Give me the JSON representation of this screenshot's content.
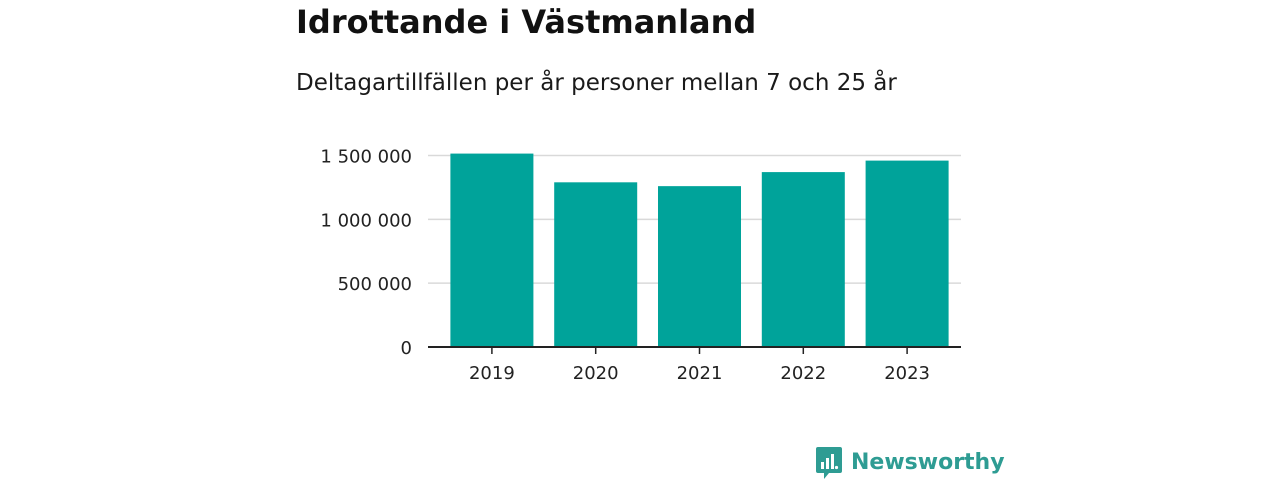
{
  "colors": {
    "bar": "#00a39a",
    "grid": "#d9d9d9",
    "axis": "#222222",
    "brand": "#2e9c93"
  },
  "brand": {
    "name": "Newsworthy",
    "icon": "newsworthy-logo-icon"
  },
  "chart_data": {
    "type": "bar",
    "title": "Idrottande i Västmanland",
    "subtitle": "Deltagartillfällen per år personer mellan 7 och 25 år",
    "xlabel": "",
    "ylabel": "",
    "categories": [
      "2019",
      "2020",
      "2021",
      "2022",
      "2023"
    ],
    "values": [
      1515000,
      1290000,
      1260000,
      1370000,
      1460000
    ],
    "ylim": [
      0,
      1500000
    ],
    "yticks": [
      0,
      500000,
      1000000,
      1500000
    ],
    "ytick_labels": [
      "0",
      "500 000",
      "1 000 000",
      "1 500 000"
    ],
    "grid": true,
    "legend": "none"
  }
}
